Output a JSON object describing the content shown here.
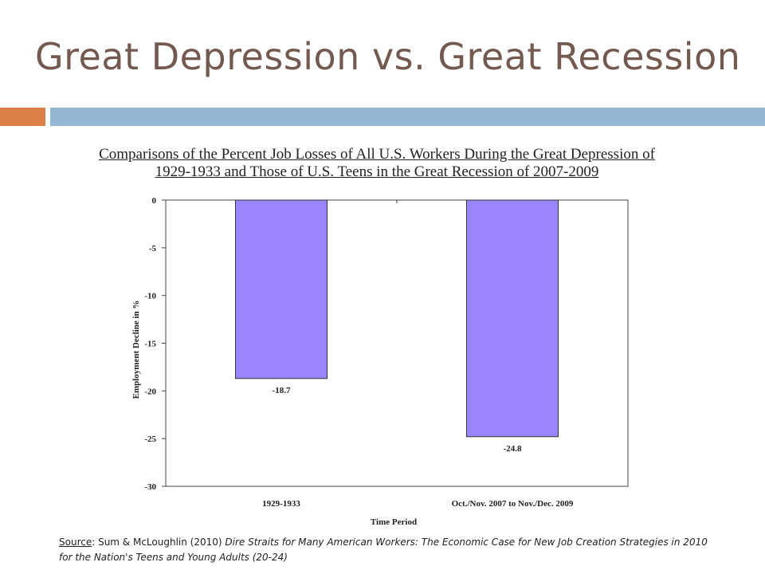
{
  "slide": {
    "title": "Great Depression vs. Great Recession",
    "accent_colors": {
      "orange": "#dd8047",
      "blue": "#94b6d2"
    }
  },
  "chart_data": {
    "type": "bar",
    "title_line1": "Comparisons of the Percent Job Losses of All U.S. Workers During the Great Depression of",
    "title_line2": "1929-1933 and Those of U.S. Teens in the Great Recession of 2007-2009",
    "categories": [
      "1929-1933",
      "Oct./Nov. 2007 to Nov./Dec. 2009"
    ],
    "values": [
      -18.7,
      -24.8
    ],
    "data_labels": [
      "-18.7",
      "-24.8"
    ],
    "xlabel": "Time Period",
    "ylabel": "Employment Decline in %",
    "ylim": [
      -30,
      0
    ],
    "yticks": [
      0,
      -5,
      -10,
      -15,
      -20,
      -25,
      -30
    ],
    "bar_color": "#9b85ff",
    "grid": false
  },
  "source": {
    "label": "Source",
    "authors": ": Sum & McLoughlin (2010) ",
    "work_title": "Dire Straits for Many American Workers: The Economic Case for New Job Creation Strategies in 2010 for the Nation's Teens and Young Adults (20-24)"
  }
}
